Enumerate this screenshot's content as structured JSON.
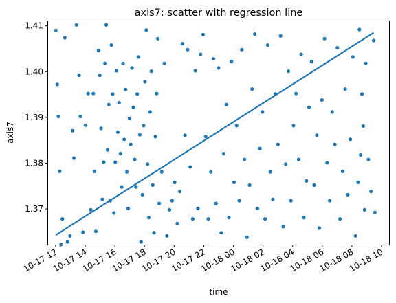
{
  "chart_data": {
    "type": "scatter",
    "title": "axis7: scatter with regression line",
    "xlabel": "time",
    "ylabel": "axis7",
    "xlim": [
      "2023-10-17T12:00",
      "2023-10-18T10:00"
    ],
    "ylim": [
      1.3622,
      1.411
    ],
    "x_ticks": [
      "10-17 12",
      "10-17 14",
      "10-17 16",
      "10-17 18",
      "10-17 20",
      "10-17 22",
      "10-18 00",
      "10-18 02",
      "10-18 04",
      "10-18 06",
      "10-18 08",
      "10-18 10"
    ],
    "y_ticks": [
      "1.37",
      "1.38",
      "1.39",
      "1.40",
      "1.41"
    ],
    "y_tick_values": [
      1.37,
      1.38,
      1.39,
      1.4,
      1.41
    ],
    "grid": false,
    "point_color": "#1f77b4",
    "line_color": "#1f77b4",
    "regression": {
      "start": {
        "x": "2023-10-17T12:30",
        "y": 1.3643
      },
      "end": {
        "x": "2023-10-18T09:00",
        "y": 1.4085
      }
    },
    "series": [
      {
        "points": [
          [
            "2023-10-17T12:30",
            1.409
          ],
          [
            "2023-10-17T12:35",
            1.3972
          ],
          [
            "2023-10-17T12:40",
            1.3902
          ],
          [
            "2023-10-17T12:45",
            1.3782
          ],
          [
            "2023-10-17T12:50",
            1.3622
          ],
          [
            "2023-10-17T12:55",
            1.3678
          ],
          [
            "2023-10-17T13:05",
            1.4074
          ],
          [
            "2023-10-17T13:15",
            1.3628
          ],
          [
            "2023-10-17T13:25",
            1.3641
          ],
          [
            "2023-10-17T13:35",
            1.3871
          ],
          [
            "2023-10-17T13:40",
            1.3811
          ],
          [
            "2023-10-17T13:50",
            1.4102
          ],
          [
            "2023-10-17T14:00",
            1.3992
          ],
          [
            "2023-10-17T14:05",
            1.3902
          ],
          [
            "2023-10-17T14:15",
            1.3649
          ],
          [
            "2023-10-17T14:25",
            1.3883
          ],
          [
            "2023-10-17T14:35",
            1.3952
          ],
          [
            "2023-10-17T14:45",
            1.3698
          ],
          [
            "2023-10-17T14:55",
            1.3952
          ],
          [
            "2023-10-17T15:00",
            1.3782
          ],
          [
            "2023-10-17T15:05",
            1.3651
          ],
          [
            "2023-10-17T15:15",
            1.4046
          ],
          [
            "2023-10-17T15:20",
            1.3992
          ],
          [
            "2023-10-17T15:25",
            1.3876
          ],
          [
            "2023-10-17T15:30",
            1.3721
          ],
          [
            "2023-10-17T15:35",
            1.3802
          ],
          [
            "2023-10-17T15:40",
            1.4018
          ],
          [
            "2023-10-17T15:45",
            1.4102
          ],
          [
            "2023-10-17T15:50",
            1.3829
          ],
          [
            "2023-10-17T15:55",
            1.3928
          ],
          [
            "2023-10-17T16:00",
            1.3718
          ],
          [
            "2023-10-17T16:05",
            1.4058
          ],
          [
            "2023-10-17T16:10",
            1.3951
          ],
          [
            "2023-10-17T16:15",
            1.3691
          ],
          [
            "2023-10-17T16:20",
            1.3802
          ],
          [
            "2023-10-17T16:25",
            1.4002
          ],
          [
            "2023-10-17T16:30",
            1.3868
          ],
          [
            "2023-10-17T16:35",
            1.3932
          ],
          [
            "2023-10-17T16:40",
            1.3821
          ],
          [
            "2023-10-17T16:45",
            1.3748
          ],
          [
            "2023-10-17T16:50",
            1.4018
          ],
          [
            "2023-10-17T16:55",
            1.3852
          ],
          [
            "2023-10-17T17:00",
            1.3961
          ],
          [
            "2023-10-17T17:05",
            1.3781
          ],
          [
            "2023-10-17T17:10",
            1.3701
          ],
          [
            "2023-10-17T17:15",
            1.3898
          ],
          [
            "2023-10-17T17:20",
            1.3841
          ],
          [
            "2023-10-17T17:25",
            1.4008
          ],
          [
            "2023-10-17T17:30",
            1.3922
          ],
          [
            "2023-10-17T17:35",
            1.3808
          ],
          [
            "2023-10-17T17:40",
            1.3748
          ],
          [
            "2023-10-17T17:45",
            1.3951
          ],
          [
            "2023-10-17T17:50",
            1.4032
          ],
          [
            "2023-10-17T17:55",
            1.3862
          ],
          [
            "2023-10-17T18:00",
            1.3628
          ],
          [
            "2023-10-17T18:05",
            1.3731
          ],
          [
            "2023-10-17T18:10",
            1.3882
          ],
          [
            "2023-10-17T18:15",
            1.3978
          ],
          [
            "2023-10-17T18:20",
            1.4091
          ],
          [
            "2023-10-17T18:25",
            1.3798
          ],
          [
            "2023-10-17T18:30",
            1.3681
          ],
          [
            "2023-10-17T18:35",
            1.3912
          ],
          [
            "2023-10-17T18:40",
            1.4001
          ],
          [
            "2023-10-17T18:45",
            1.3752
          ],
          [
            "2023-10-17T18:50",
            1.3648
          ],
          [
            "2023-10-17T18:55",
            1.3858
          ],
          [
            "2023-10-17T19:00",
            1.3952
          ],
          [
            "2023-10-17T19:05",
            1.4072
          ],
          [
            "2023-10-17T19:10",
            1.3712
          ],
          [
            "2023-10-17T19:20",
            1.3781
          ],
          [
            "2023-10-17T19:30",
            1.4018
          ],
          [
            "2023-10-17T19:40",
            1.3641
          ],
          [
            "2023-10-17T19:50",
            1.3698
          ],
          [
            "2023-10-17T20:00",
            1.3718
          ],
          [
            "2023-10-17T20:10",
            1.3758
          ],
          [
            "2023-10-17T20:20",
            1.3668
          ],
          [
            "2023-10-17T20:30",
            1.3738
          ],
          [
            "2023-10-17T20:40",
            1.4061
          ],
          [
            "2023-10-17T20:50",
            1.3861
          ],
          [
            "2023-10-17T21:00",
            1.4048
          ],
          [
            "2023-10-17T21:10",
            1.3792
          ],
          [
            "2023-10-17T21:20",
            1.3678
          ],
          [
            "2023-10-17T21:30",
            1.4002
          ],
          [
            "2023-10-17T21:40",
            1.3701
          ],
          [
            "2023-10-17T21:50",
            1.4038
          ],
          [
            "2023-10-17T22:00",
            1.4081
          ],
          [
            "2023-10-17T22:10",
            1.3858
          ],
          [
            "2023-10-17T22:20",
            1.3678
          ],
          [
            "2023-10-17T22:30",
            1.3781
          ],
          [
            "2023-10-17T22:40",
            1.4028
          ],
          [
            "2023-10-17T22:50",
            1.3712
          ],
          [
            "2023-10-17T23:00",
            1.4008
          ],
          [
            "2023-10-17T23:10",
            1.3648
          ],
          [
            "2023-10-17T23:20",
            1.3821
          ],
          [
            "2023-10-17T23:30",
            1.3928
          ],
          [
            "2023-10-17T23:40",
            1.3681
          ],
          [
            "2023-10-17T23:50",
            1.4022
          ],
          [
            "2023-10-18T00:00",
            1.3758
          ],
          [
            "2023-10-18T00:10",
            1.3882
          ],
          [
            "2023-10-18T00:20",
            1.3718
          ],
          [
            "2023-10-18T00:30",
            1.4048
          ],
          [
            "2023-10-18T00:40",
            1.3808
          ],
          [
            "2023-10-18T00:50",
            1.3638
          ],
          [
            "2023-10-18T01:00",
            1.3752
          ],
          [
            "2023-10-18T01:10",
            1.3962
          ],
          [
            "2023-10-18T01:20",
            1.4082
          ],
          [
            "2023-10-18T01:30",
            1.3701
          ],
          [
            "2023-10-18T01:40",
            1.3832
          ],
          [
            "2023-10-18T01:50",
            1.3912
          ],
          [
            "2023-10-18T02:00",
            1.3678
          ],
          [
            "2023-10-18T02:10",
            1.4058
          ],
          [
            "2023-10-18T02:20",
            1.3781
          ],
          [
            "2023-10-18T02:30",
            1.3721
          ],
          [
            "2023-10-18T02:40",
            1.3951
          ],
          [
            "2023-10-18T02:50",
            1.3841
          ],
          [
            "2023-10-18T03:00",
            1.4078
          ],
          [
            "2023-10-18T03:10",
            1.3661
          ],
          [
            "2023-10-18T03:20",
            1.3798
          ],
          [
            "2023-10-18T03:30",
            1.4001
          ],
          [
            "2023-10-18T03:40",
            1.3718
          ],
          [
            "2023-10-18T03:50",
            1.3882
          ],
          [
            "2023-10-18T04:00",
            1.3952
          ],
          [
            "2023-10-18T04:10",
            1.3808
          ],
          [
            "2023-10-18T04:20",
            1.4038
          ],
          [
            "2023-10-18T04:30",
            1.3681
          ],
          [
            "2023-10-18T04:40",
            1.3761
          ],
          [
            "2023-10-18T04:50",
            1.3922
          ],
          [
            "2023-10-18T05:00",
            1.4022
          ],
          [
            "2023-10-18T05:10",
            1.3752
          ],
          [
            "2023-10-18T05:20",
            1.3861
          ],
          [
            "2023-10-18T05:30",
            1.3658
          ],
          [
            "2023-10-18T05:40",
            1.3938
          ],
          [
            "2023-10-18T05:50",
            1.4072
          ],
          [
            "2023-10-18T06:00",
            1.3801
          ],
          [
            "2023-10-18T06:10",
            1.3718
          ],
          [
            "2023-10-18T06:20",
            1.3912
          ],
          [
            "2023-10-18T06:30",
            1.3841
          ],
          [
            "2023-10-18T06:40",
            1.4052
          ],
          [
            "2023-10-18T06:50",
            1.3678
          ],
          [
            "2023-10-18T07:00",
            1.3782
          ],
          [
            "2023-10-18T07:10",
            1.3962
          ],
          [
            "2023-10-18T07:20",
            1.3731
          ],
          [
            "2023-10-18T07:30",
            1.3852
          ],
          [
            "2023-10-18T07:40",
            1.4032
          ],
          [
            "2023-10-18T07:50",
            1.3641
          ],
          [
            "2023-10-18T08:00",
            1.3758
          ],
          [
            "2023-10-18T08:05",
            1.4092
          ],
          [
            "2023-10-18T08:10",
            1.3818
          ],
          [
            "2023-10-18T08:15",
            1.3951
          ],
          [
            "2023-10-18T08:20",
            1.3881
          ],
          [
            "2023-10-18T08:25",
            1.3698
          ],
          [
            "2023-10-18T08:30",
            1.4018
          ],
          [
            "2023-10-18T08:40",
            1.3808
          ],
          [
            "2023-10-18T08:50",
            1.3738
          ],
          [
            "2023-10-18T09:00",
            1.4068
          ],
          [
            "2023-10-18T09:05",
            1.3692
          ]
        ]
      }
    ]
  }
}
